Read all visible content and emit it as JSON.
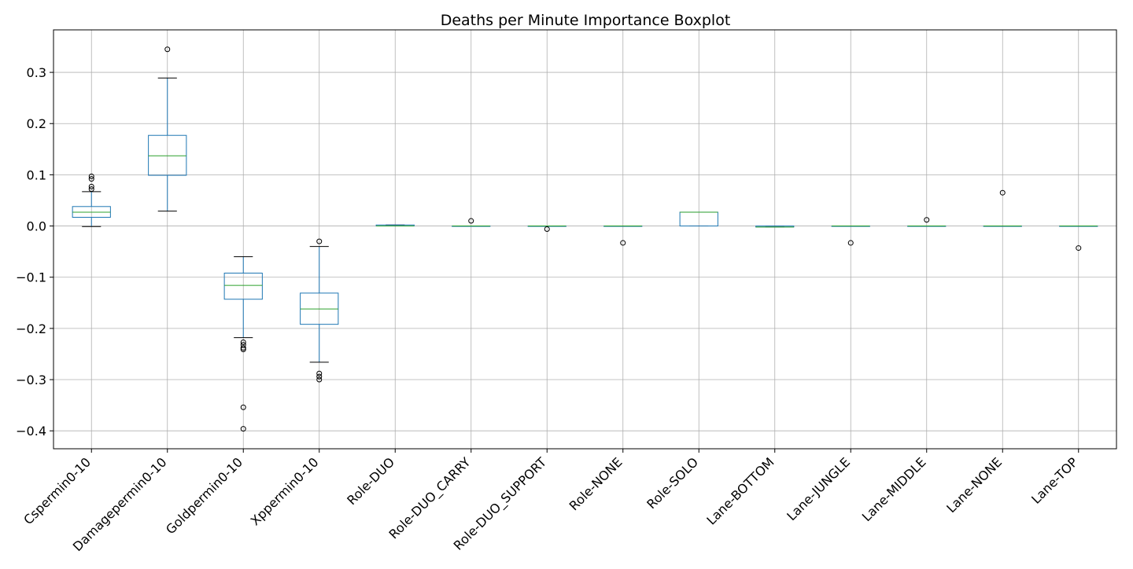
{
  "chart_data": {
    "type": "boxplot",
    "title": "Deaths per Minute Importance Boxplot",
    "xlabel": "",
    "ylabel": "",
    "ylim": [
      -0.435,
      0.383
    ],
    "yticks": [
      -0.4,
      -0.3,
      -0.2,
      -0.1,
      0.0,
      0.1,
      0.2,
      0.3
    ],
    "ytick_labels": [
      "−0.4",
      "−0.3",
      "−0.2",
      "−0.1",
      "0.0",
      "0.1",
      "0.2",
      "0.3"
    ],
    "grid": true,
    "box_color": "#1f77b4",
    "median_color": "#2ca02c",
    "whisker_color": "#1f77b4",
    "cap_color": "#000000",
    "flier_color": "#000000",
    "categories": [
      "Cspermin0-10",
      "Damagepermin0-10",
      "Goldpermin0-10",
      "Xppermin0-10",
      "Role-DUO",
      "Role-DUO_CARRY",
      "Role-DUO_SUPPORT",
      "Role-NONE",
      "Role-SOLO",
      "Lane-BOTTOM",
      "Lane-JUNGLE",
      "Lane-MIDDLE",
      "Lane-NONE",
      "Lane-TOP"
    ],
    "boxes": [
      {
        "label": "Cspermin0-10",
        "whislo": -0.001,
        "q1": 0.017,
        "med": 0.027,
        "q3": 0.038,
        "whishi": 0.067,
        "fliers": [
          0.072,
          0.077,
          0.092,
          0.097
        ]
      },
      {
        "label": "Damagepermin0-10",
        "whislo": 0.029,
        "q1": 0.099,
        "med": 0.137,
        "q3": 0.177,
        "whishi": 0.289,
        "fliers": [
          0.345
        ]
      },
      {
        "label": "Goldpermin0-10",
        "whislo": -0.218,
        "q1": -0.143,
        "med": -0.116,
        "q3": -0.092,
        "whishi": -0.06,
        "fliers": [
          -0.227,
          -0.232,
          -0.238,
          -0.241,
          -0.354,
          -0.396
        ]
      },
      {
        "label": "Xppermin0-10",
        "whislo": -0.266,
        "q1": -0.192,
        "med": -0.162,
        "q3": -0.131,
        "whishi": -0.04,
        "fliers": [
          -0.03,
          -0.288,
          -0.294,
          -0.3
        ]
      },
      {
        "label": "Role-DUO",
        "whislo": 0.0,
        "q1": 0.0,
        "med": 0.0,
        "q3": 0.002,
        "whishi": 0.002,
        "fliers": []
      },
      {
        "label": "Role-DUO_CARRY",
        "whislo": 0.0,
        "q1": 0.0,
        "med": 0.0,
        "q3": 0.0,
        "whishi": 0.0,
        "fliers": [
          0.01
        ]
      },
      {
        "label": "Role-DUO_SUPPORT",
        "whislo": 0.0,
        "q1": 0.0,
        "med": 0.0,
        "q3": 0.0,
        "whishi": 0.0,
        "fliers": [
          -0.006
        ]
      },
      {
        "label": "Role-NONE",
        "whislo": 0.0,
        "q1": 0.0,
        "med": 0.0,
        "q3": 0.0,
        "whishi": 0.0,
        "fliers": [
          -0.033
        ]
      },
      {
        "label": "Role-SOLO",
        "whislo": 0.0,
        "q1": 0.0,
        "med": 0.027,
        "q3": 0.027,
        "whishi": 0.027,
        "fliers": []
      },
      {
        "label": "Lane-BOTTOM",
        "whislo": -0.002,
        "q1": -0.002,
        "med": -0.002,
        "q3": 0.0,
        "whishi": 0.0,
        "fliers": []
      },
      {
        "label": "Lane-JUNGLE",
        "whislo": 0.0,
        "q1": 0.0,
        "med": 0.0,
        "q3": 0.0,
        "whishi": 0.0,
        "fliers": [
          -0.033
        ]
      },
      {
        "label": "Lane-MIDDLE",
        "whislo": 0.0,
        "q1": 0.0,
        "med": 0.0,
        "q3": 0.0,
        "whishi": 0.0,
        "fliers": [
          0.012
        ]
      },
      {
        "label": "Lane-NONE",
        "whislo": 0.0,
        "q1": 0.0,
        "med": 0.0,
        "q3": 0.0,
        "whishi": 0.0,
        "fliers": [
          0.065
        ]
      },
      {
        "label": "Lane-TOP",
        "whislo": 0.0,
        "q1": 0.0,
        "med": 0.0,
        "q3": 0.0,
        "whishi": 0.0,
        "fliers": [
          -0.043
        ]
      }
    ]
  }
}
